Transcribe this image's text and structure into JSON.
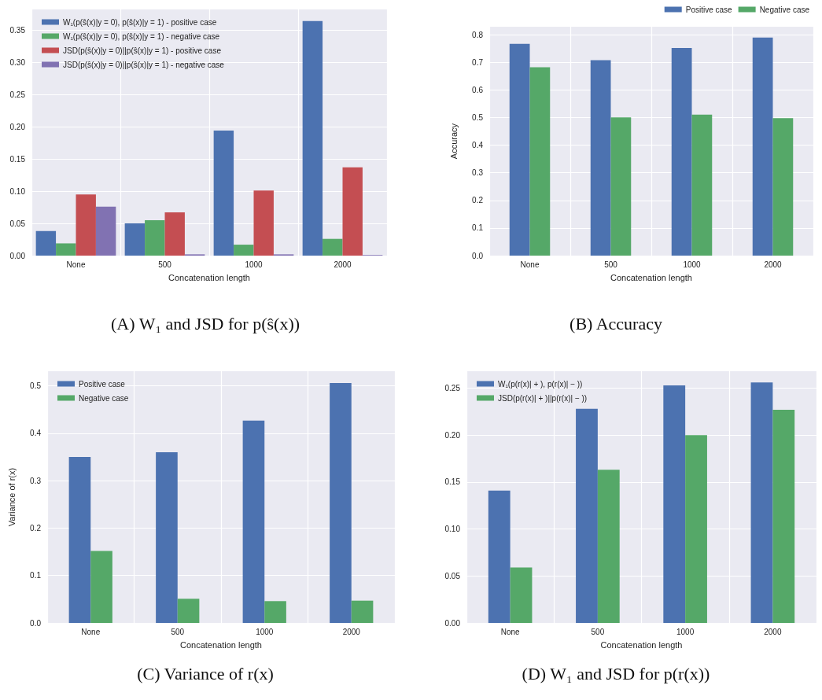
{
  "chart_data": [
    {
      "type": "bar",
      "title": "(A) W₁ and JSD for p(ŝ(x))",
      "xlabel": "Concatenation length",
      "categories": [
        "None",
        "500",
        "1000",
        "2000"
      ],
      "ylim": [
        0,
        0.382
      ],
      "yticks": [
        {
          "value": 0,
          "label": "0.00"
        },
        {
          "value": 0.05,
          "label": "0.05"
        },
        {
          "value": 0.1,
          "label": "0.10"
        },
        {
          "value": 0.15,
          "label": "0.15"
        },
        {
          "value": 0.2,
          "label": "0.20"
        },
        {
          "value": 0.25,
          "label": "0.25"
        },
        {
          "value": 0.3,
          "label": "0.30"
        },
        {
          "value": 0.35,
          "label": "0.35"
        }
      ],
      "grid": true,
      "legend": "top left",
      "series": [
        {
          "name": "W₁(p(ŝ(x)|y = 0), p(ŝ(x)|y = 1) - positive case",
          "color": "#4c72b0",
          "values": [
            0.038,
            0.05,
            0.194,
            0.364
          ]
        },
        {
          "name": "W₁(p(ŝ(x)|y = 0), p(ŝ(x)|y = 1) - negative case",
          "color": "#55a868",
          "values": [
            0.019,
            0.055,
            0.017,
            0.026
          ]
        },
        {
          "name": "JSD(p(ŝ(x)|y = 0)||p(ŝ(x)|y = 1) - positive case",
          "color": "#c44e52",
          "values": [
            0.095,
            0.067,
            0.101,
            0.137
          ]
        },
        {
          "name": "JSD(p(ŝ(x)|y = 0)||p(ŝ(x)|y = 1) - negative case",
          "color": "#8172b2",
          "values": [
            0.076,
            0.002,
            0.002,
            0.001
          ]
        }
      ]
    },
    {
      "type": "bar",
      "title": "(B) Accuracy",
      "xlabel": "Concatenation length",
      "ylabel": "Accuracy",
      "categories": [
        "None",
        "500",
        "1000",
        "2000"
      ],
      "ylim": [
        0,
        0.829
      ],
      "yticks": [
        {
          "value": 0,
          "label": "0.0"
        },
        {
          "value": 0.1,
          "label": "0.1"
        },
        {
          "value": 0.2,
          "label": "0.2"
        },
        {
          "value": 0.3,
          "label": "0.3"
        },
        {
          "value": 0.4,
          "label": "0.4"
        },
        {
          "value": 0.5,
          "label": "0.5"
        },
        {
          "value": 0.6,
          "label": "0.6"
        },
        {
          "value": 0.7,
          "label": "0.7"
        },
        {
          "value": 0.8,
          "label": "0.8"
        }
      ],
      "grid": true,
      "legend": "top right",
      "series": [
        {
          "name": "Positive case",
          "color": "#4c72b0",
          "values": [
            0.767,
            0.708,
            0.752,
            0.79
          ]
        },
        {
          "name": "Negative case",
          "color": "#55a868",
          "values": [
            0.682,
            0.501,
            0.511,
            0.498
          ]
        }
      ]
    },
    {
      "type": "bar",
      "title": "(C) Variance of r(x)",
      "xlabel": "Concatenation length",
      "ylabel": "Variance of r(x)",
      "categories": [
        "None",
        "500",
        "1000",
        "2000"
      ],
      "ylim": [
        0,
        0.531
      ],
      "yticks": [
        {
          "value": 0,
          "label": "0.0"
        },
        {
          "value": 0.1,
          "label": "0.1"
        },
        {
          "value": 0.2,
          "label": "0.2"
        },
        {
          "value": 0.3,
          "label": "0.3"
        },
        {
          "value": 0.4,
          "label": "0.4"
        },
        {
          "value": 0.5,
          "label": "0.5"
        }
      ],
      "grid": true,
      "legend": "top left",
      "series": [
        {
          "name": "Positive case",
          "color": "#4c72b0",
          "values": [
            0.35,
            0.36,
            0.427,
            0.506
          ]
        },
        {
          "name": "Negative case",
          "color": "#55a868",
          "values": [
            0.152,
            0.051,
            0.046,
            0.047
          ]
        }
      ]
    },
    {
      "type": "bar",
      "title": "(D) W₁ and JSD for p(r(x))",
      "xlabel": "Concatenation length",
      "categories": [
        "None",
        "500",
        "1000",
        "2000"
      ],
      "ylim": [
        0,
        0.268
      ],
      "yticks": [
        {
          "value": 0,
          "label": "0.00"
        },
        {
          "value": 0.05,
          "label": "0.05"
        },
        {
          "value": 0.1,
          "label": "0.10"
        },
        {
          "value": 0.15,
          "label": "0.15"
        },
        {
          "value": 0.2,
          "label": "0.20"
        },
        {
          "value": 0.25,
          "label": "0.25"
        }
      ],
      "grid": true,
      "legend": "top left",
      "series": [
        {
          "name": "W₁(p(r(x)| + ), p(r(x)| − ))",
          "color": "#4c72b0",
          "values": [
            0.141,
            0.228,
            0.253,
            0.256
          ]
        },
        {
          "name": "JSD(p(r(x)| + )||p(r(x)| − ))",
          "color": "#55a868",
          "values": [
            0.059,
            0.163,
            0.2,
            0.227
          ]
        }
      ]
    }
  ]
}
